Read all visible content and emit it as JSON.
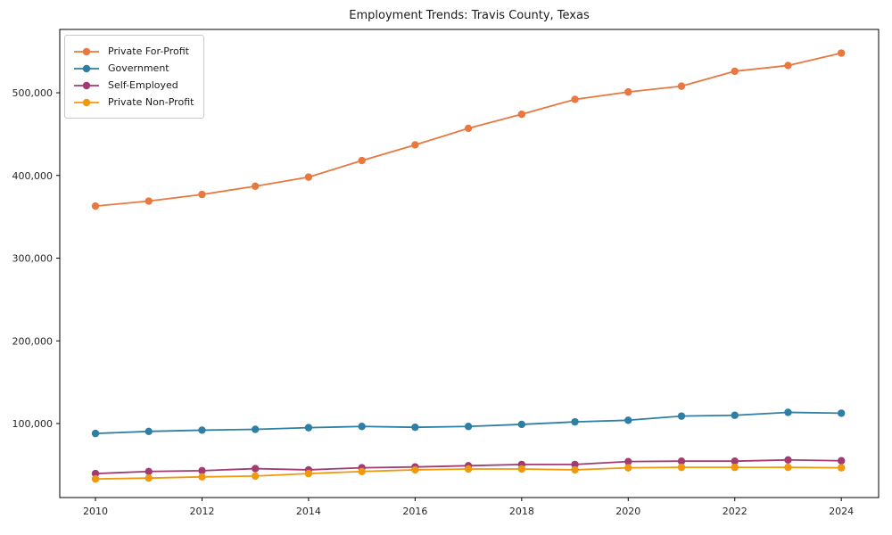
{
  "figure": {
    "title": "Employment Trends: Travis County, Texas"
  },
  "chart_data": {
    "type": "line",
    "title": "Employment Trends: Travis County, Texas",
    "xlabel": "",
    "ylabel": "",
    "x": [
      2010,
      2011,
      2012,
      2013,
      2014,
      2015,
      2016,
      2017,
      2018,
      2019,
      2020,
      2021,
      2022,
      2023,
      2024
    ],
    "series": [
      {
        "name": "Private For-Profit",
        "color": "#E8783F",
        "marker": "circle",
        "values": [
          363000,
          369000,
          377000,
          387000,
          398000,
          418000,
          437000,
          457000,
          474000,
          492000,
          501000,
          508000,
          526000,
          533000,
          548000
        ]
      },
      {
        "name": "Government",
        "color": "#2E7FA3",
        "marker": "circle",
        "values": [
          88000,
          90500,
          92000,
          93000,
          95000,
          96500,
          95500,
          96500,
          99000,
          102000,
          104000,
          109000,
          110000,
          113500,
          112500
        ]
      },
      {
        "name": "Self-Employed",
        "color": "#A23B72",
        "marker": "circle",
        "values": [
          39500,
          42000,
          43000,
          45500,
          44000,
          46500,
          47500,
          49000,
          50500,
          50500,
          54000,
          54500,
          54500,
          56000,
          55000
        ]
      },
      {
        "name": "Private Non-Profit",
        "color": "#F0980E",
        "marker": "circle",
        "values": [
          33000,
          34000,
          35500,
          36500,
          39500,
          42000,
          44000,
          45000,
          45000,
          44000,
          46500,
          47000,
          47000,
          47000,
          46500
        ]
      }
    ],
    "xlim": [
      2009.33,
      2024.7
    ],
    "ylim": [
      10500,
      576600
    ],
    "xticks": [
      2010,
      2012,
      2014,
      2016,
      2018,
      2020,
      2022,
      2024
    ],
    "xtick_labels": [
      "2010",
      "2012",
      "2014",
      "2016",
      "2018",
      "2020",
      "2022",
      "2024"
    ],
    "yticks": [
      100000,
      200000,
      300000,
      400000,
      500000
    ],
    "ytick_labels": [
      "100,000",
      "200,000",
      "300,000",
      "400,000",
      "500,000"
    ],
    "grid": false,
    "legend_position": "upper-left",
    "spine_color": "#000000"
  }
}
